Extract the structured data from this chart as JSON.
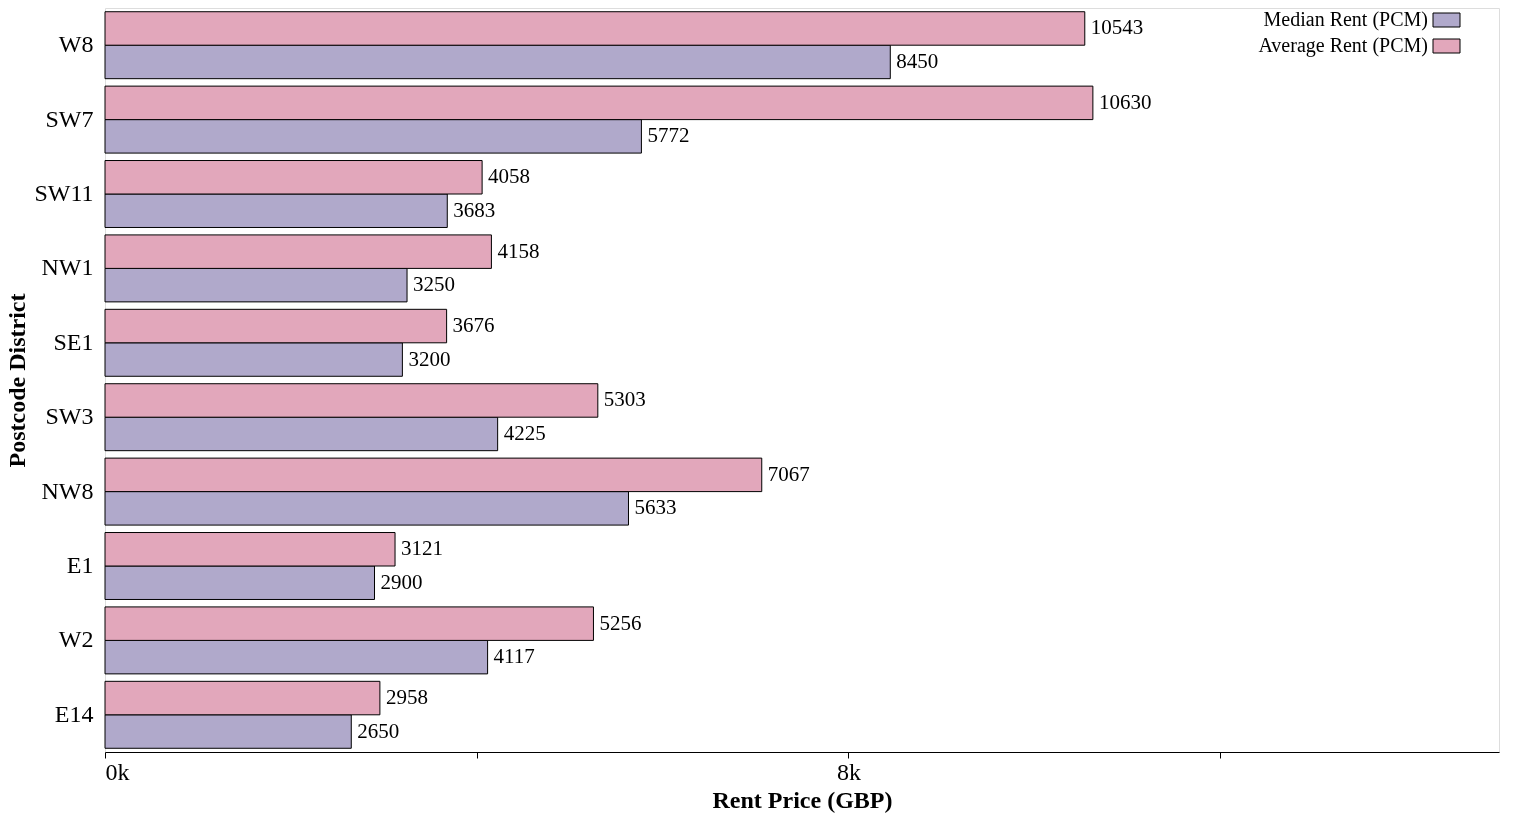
{
  "chart_data": {
    "type": "bar",
    "orientation": "horizontal",
    "xlabel": "Rent Price (GBP)",
    "ylabel": "Postcode District",
    "categories": [
      "W8",
      "SW7",
      "SW11",
      "NW1",
      "SE1",
      "SW3",
      "NW8",
      "E1",
      "W2",
      "E14"
    ],
    "series": [
      {
        "name": "Median Rent (PCM)",
        "color": "#b0a9cb",
        "values": [
          8450,
          5772,
          3683,
          3250,
          3200,
          4225,
          5633,
          2900,
          4117,
          2650
        ]
      },
      {
        "name": "Average Rent (PCM)",
        "color": "#e2a7bb",
        "values": [
          10543,
          10630,
          4058,
          4158,
          3676,
          5303,
          7067,
          3121,
          5256,
          2958
        ]
      }
    ],
    "xlim": [
      0,
      15000
    ],
    "xticks": [
      {
        "value": 0,
        "label": "0k"
      },
      {
        "value": 4000,
        "label": null
      },
      {
        "value": 8000,
        "label": "8k"
      },
      {
        "value": 12000,
        "label": null
      }
    ],
    "data_labels": true,
    "grid": false,
    "legend": "top right"
  }
}
